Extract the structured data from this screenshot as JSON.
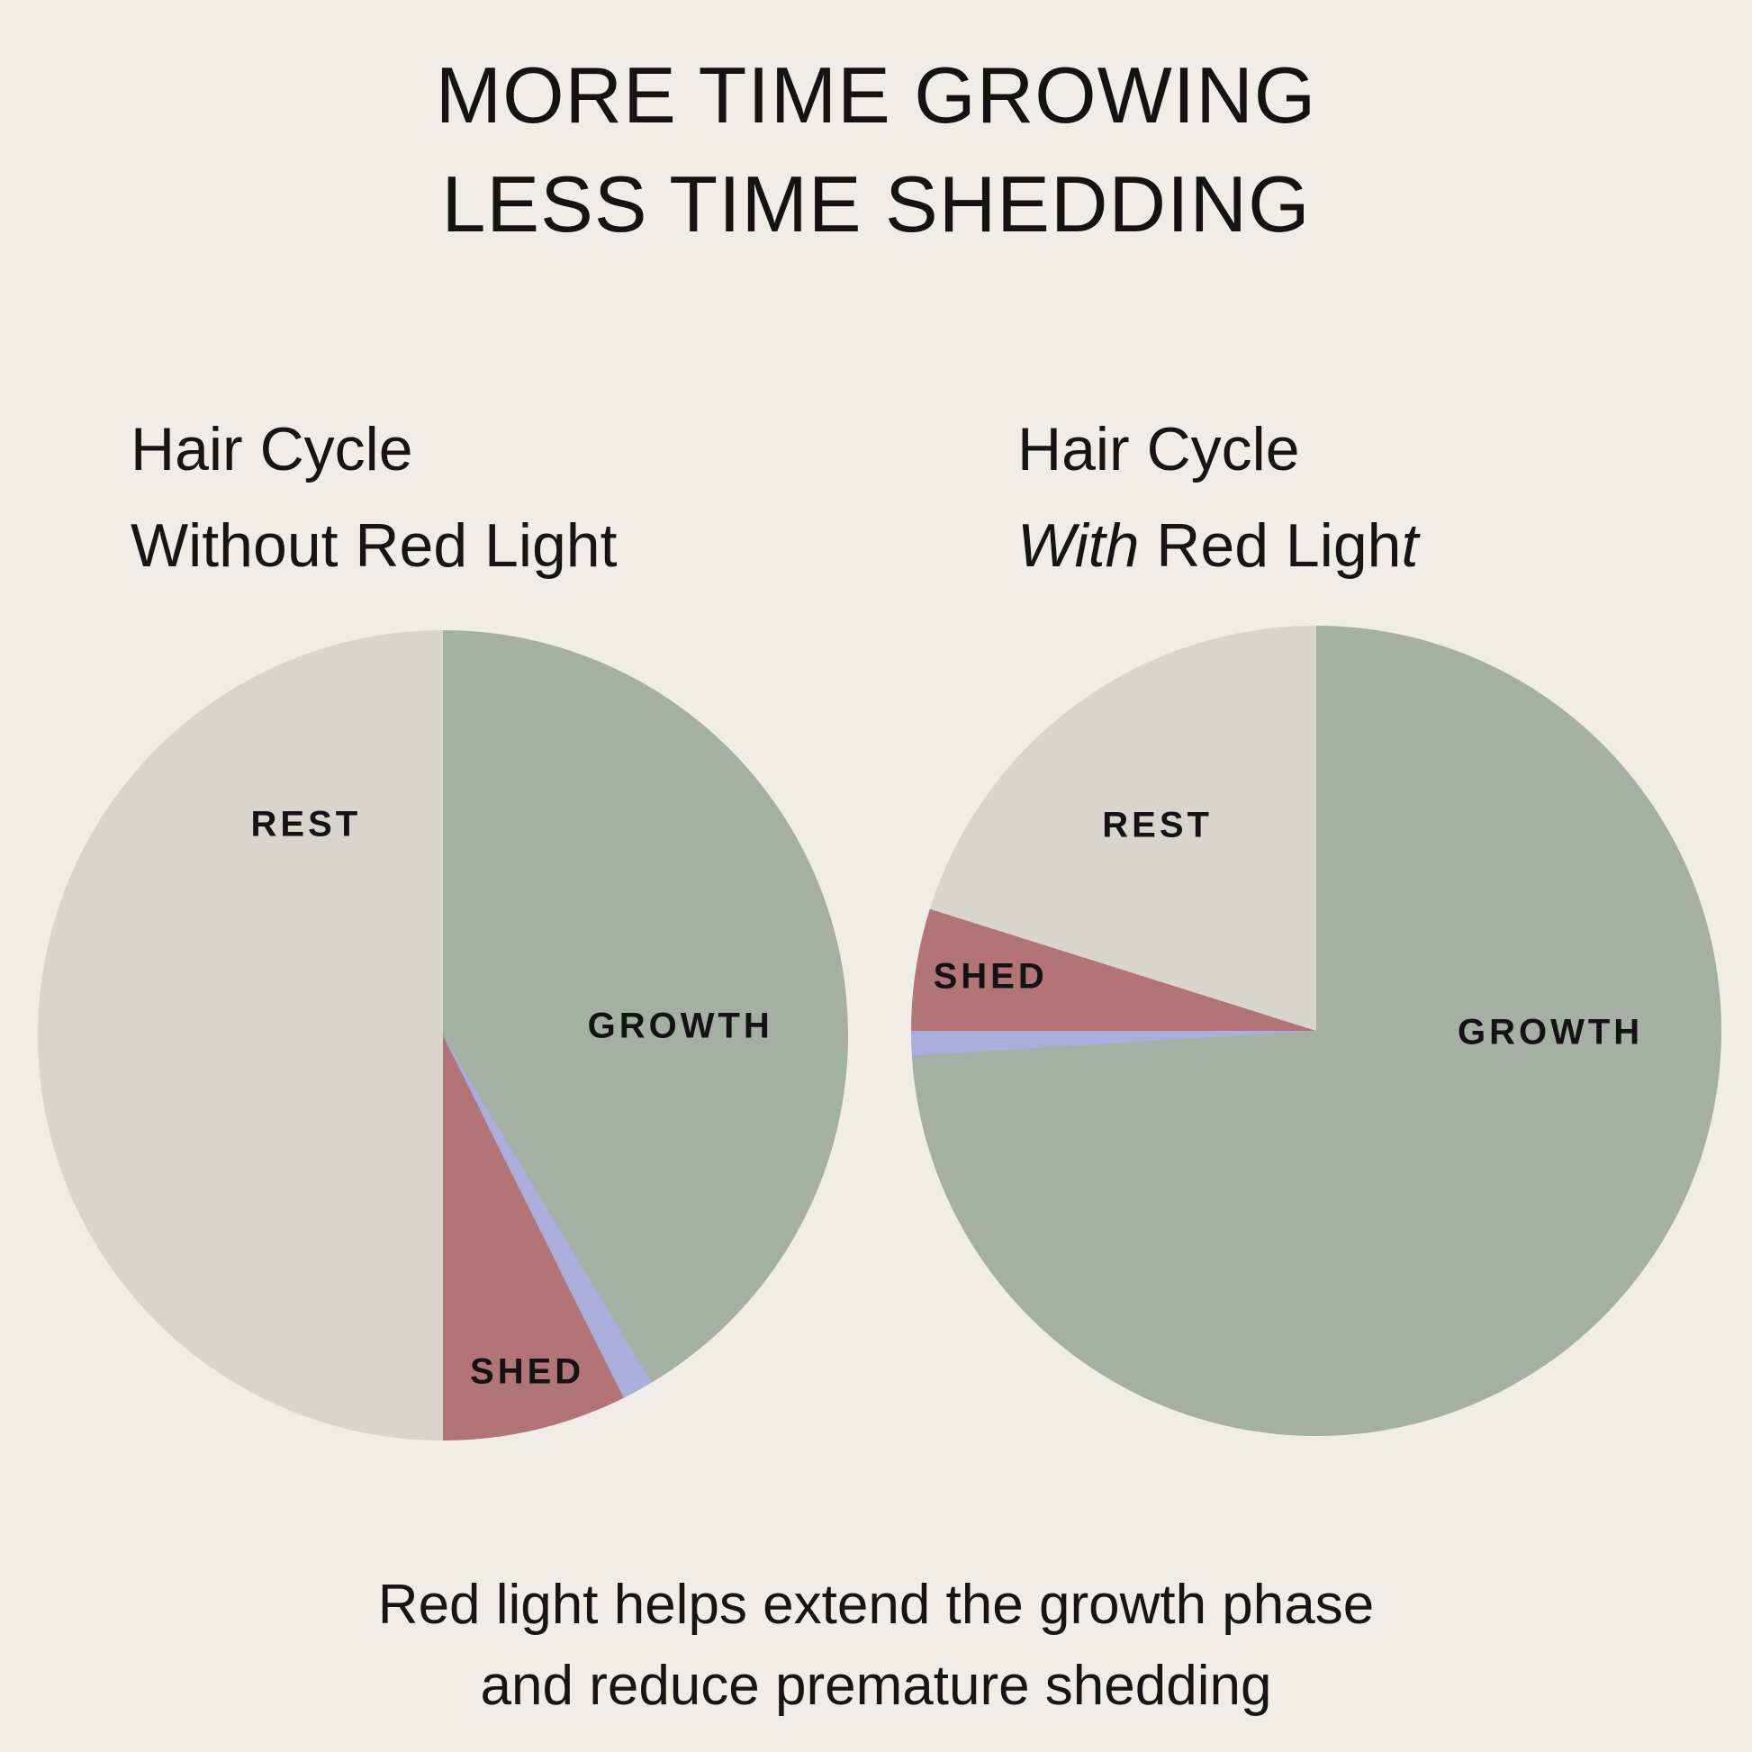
{
  "page": {
    "background_color": "#f0ede8",
    "text_color": "#131313",
    "title_line1": "MORE TIME GROWING",
    "title_line2": "LESS TIME SHEDDING",
    "caption_line1": "Red light helps extend the growth phase",
    "caption_line2": "and reduce premature shedding"
  },
  "left_heading": {
    "line1": "Hair Cycle",
    "line2": "Without Red Light"
  },
  "right_heading": {
    "line1": "Hair Cycle",
    "line2_seg1": "With",
    "line2_seg2": " Red Ligh",
    "line2_seg3": "t"
  },
  "chart_data": [
    {
      "type": "pie",
      "title": "Hair Cycle Without Red Light",
      "start": "top",
      "direction": "clockwise",
      "slices": [
        {
          "label": "GROWTH",
          "phase": "growth",
          "degrees": 149.0,
          "percent": 41.4,
          "color": "#a4b0a1",
          "label_x_pct": 79.3,
          "label_y_pct": 48.9
        },
        {
          "label": "",
          "phase": "transition",
          "degrees": 4.5,
          "percent": 1.2,
          "color": "#a9aedd"
        },
        {
          "label": "SHED",
          "phase": "shed",
          "degrees": 26.5,
          "percent": 7.4,
          "color": "#b27477",
          "label_x_pct": 60.4,
          "label_y_pct": 91.5
        },
        {
          "label": "REST",
          "phase": "rest",
          "degrees": 180.0,
          "percent": 50.0,
          "color": "#d8d5cc",
          "label_x_pct": 33.1,
          "label_y_pct": 24.0
        }
      ]
    },
    {
      "type": "pie",
      "title": "Hair Cycle With Red Light",
      "start": "top",
      "direction": "clockwise",
      "slices": [
        {
          "label": "GROWTH",
          "phase": "growth",
          "degrees": 266.5,
          "percent": 74.0,
          "color": "#a4b0a1",
          "label_x_pct": 78.9,
          "label_y_pct": 50.2
        },
        {
          "label": "",
          "phase": "transition",
          "degrees": 3.5,
          "percent": 1.0,
          "color": "#a9aedd"
        },
        {
          "label": "SHED",
          "phase": "shed",
          "degrees": 17.5,
          "percent": 4.9,
          "color": "#b27477",
          "label_x_pct": 9.8,
          "label_y_pct": 43.3
        },
        {
          "label": "REST",
          "phase": "rest",
          "degrees": 72.5,
          "percent": 20.1,
          "color": "#d8d5cc",
          "label_x_pct": 30.4,
          "label_y_pct": 24.7
        }
      ]
    }
  ]
}
